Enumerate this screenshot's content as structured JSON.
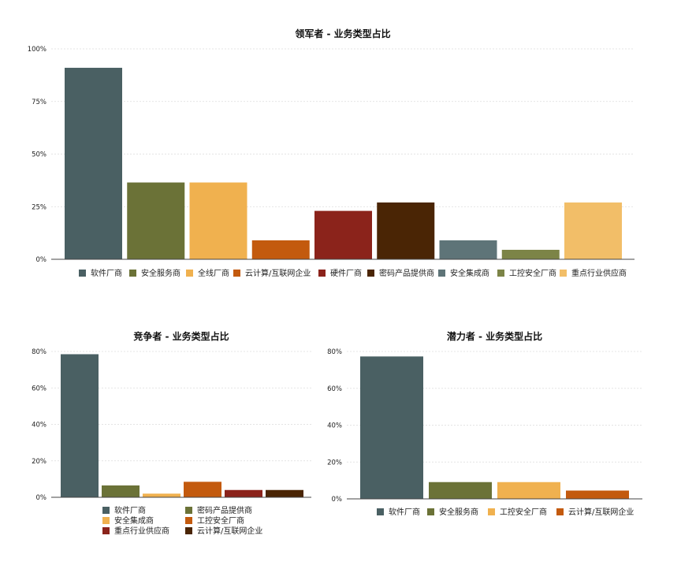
{
  "chart_data": [
    {
      "id": "leaders",
      "type": "bar",
      "title": "领军者 - 业务类型占比",
      "xlabel": "",
      "ylabel": "",
      "ylim": [
        0,
        100
      ],
      "y_ticks": [
        "0%",
        "25%",
        "50%",
        "75%",
        "100%"
      ],
      "y_tick_values": [
        0,
        25,
        50,
        75,
        100
      ],
      "categories": [
        "软件厂商",
        "安全服务商",
        "全线厂商",
        "云计算/互联网企业",
        "硬件厂商",
        "密码产品提供商",
        "安全集成商",
        "工控安全厂商",
        "重点行业供应商"
      ],
      "values": [
        91,
        36.5,
        36.5,
        9,
        23,
        27,
        9,
        4.5,
        27
      ],
      "colors": [
        "#4a6063",
        "#6b7237",
        "#f0b14f",
        "#c35a0e",
        "#8b231b",
        "#4a2505",
        "#5e7478",
        "#7c8447",
        "#f2be68"
      ],
      "legend": "bottom",
      "grid": true
    },
    {
      "id": "competitors",
      "type": "bar",
      "title": "竞争者 - 业务类型占比",
      "xlabel": "",
      "ylabel": "",
      "ylim": [
        0,
        80
      ],
      "y_ticks": [
        "0%",
        "20%",
        "40%",
        "60%",
        "80%"
      ],
      "y_tick_values": [
        0,
        20,
        40,
        60,
        80
      ],
      "categories": [
        "软件厂商",
        "密码产品提供商",
        "安全集成商",
        "工控安全厂商",
        "重点行业供应商",
        "云计算/互联网企业"
      ],
      "values": [
        78.5,
        6.5,
        2,
        8.5,
        4,
        4
      ],
      "colors": [
        "#4a6063",
        "#6b7237",
        "#f0b14f",
        "#c35a0e",
        "#8b231b",
        "#4a2505"
      ],
      "legend": "bottom",
      "grid": true
    },
    {
      "id": "potentials",
      "type": "bar",
      "title": "潜力者 - 业务类型占比",
      "xlabel": "",
      "ylabel": "",
      "ylim": [
        0,
        80
      ],
      "y_ticks": [
        "0%",
        "20%",
        "40%",
        "60%",
        "80%"
      ],
      "y_tick_values": [
        0,
        20,
        40,
        60,
        80
      ],
      "categories": [
        "软件厂商",
        "安全服务商",
        "工控安全厂商",
        "云计算/互联网企业"
      ],
      "values": [
        77.3,
        9.1,
        9.1,
        4.5
      ],
      "colors": [
        "#4a6063",
        "#6b7237",
        "#f0b14f",
        "#c35a0e"
      ],
      "legend": "bottom",
      "grid": true
    }
  ]
}
